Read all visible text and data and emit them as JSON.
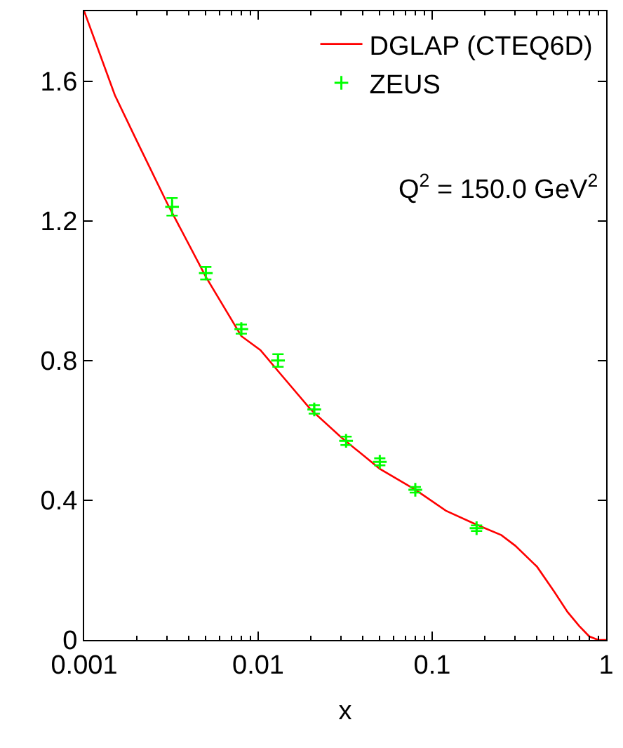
{
  "chart_data": {
    "type": "line",
    "xlabel": "x",
    "log": "x",
    "xlim": [
      0.001,
      1
    ],
    "xticks": [
      0.001,
      0.01,
      0.1,
      1
    ],
    "ylim": [
      0,
      1.8
    ],
    "yticks": [
      0,
      0.4,
      0.8,
      1.2,
      1.6
    ],
    "legend": "top right",
    "annotations": [
      "Q$^{2}$ = 150.0 GeV$^{2}$"
    ],
    "series": [
      {
        "name": "DGLAP (CTEQ6D)",
        "color": "#ff0000",
        "marker": "none",
        "x": [
          0.001,
          0.0015,
          0.002,
          0.003,
          0.005,
          0.008,
          0.0103,
          0.013,
          0.02,
          0.03,
          0.05,
          0.08,
          0.12,
          0.18,
          0.25,
          0.3,
          0.4,
          0.5,
          0.6,
          0.7,
          0.8,
          0.9,
          1.0
        ],
        "values": [
          1.8,
          1.56,
          1.43,
          1.25,
          1.04,
          0.87,
          0.83,
          0.77,
          0.66,
          0.58,
          0.49,
          0.43,
          0.37,
          0.33,
          0.3,
          0.27,
          0.21,
          0.14,
          0.08,
          0.04,
          0.01,
          0.0,
          0.0
        ]
      },
      {
        "name": "ZEUS",
        "type": "scatter",
        "color": "#00ff00",
        "marker": "cross",
        "x": [
          0.0032,
          0.005,
          0.008,
          0.013,
          0.021,
          0.032,
          0.05,
          0.08,
          0.18
        ],
        "values": [
          1.24,
          1.05,
          0.89,
          0.8,
          0.66,
          0.57,
          0.51,
          0.43,
          0.32
        ],
        "errors": [
          0.025,
          0.018,
          0.013,
          0.018,
          0.012,
          0.012,
          0.01,
          0.008,
          0.008
        ]
      }
    ]
  }
}
